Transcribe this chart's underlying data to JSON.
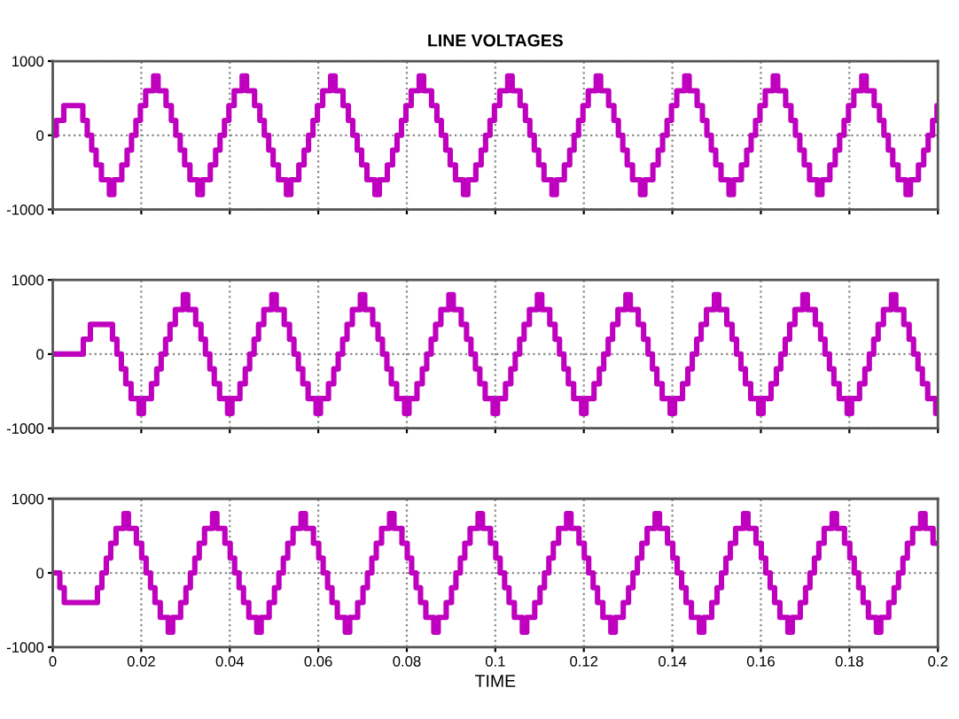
{
  "chart_data": [
    {
      "type": "step",
      "title": "LINE VOLTAGES",
      "xlim": [
        0,
        0.2
      ],
      "ylim": [
        -1000,
        1000
      ],
      "xticks": [
        0,
        0.02,
        0.04,
        0.06,
        0.08,
        0.1,
        0.12,
        0.14,
        0.16,
        0.18,
        0.2
      ],
      "yticks": [
        -1000,
        0,
        1000
      ],
      "tick_labels": "y",
      "grid": true,
      "series": [
        {
          "color": "#bf00bf",
          "x": [
            0,
            0.0008,
            0.0025,
            0.0068,
            0.0078,
            0.0088,
            0.0098,
            0.011,
            0.0128,
            0.0138,
            0.0156,
            0.0168,
            0.0178,
            0.0188,
            0.0198,
            0.021,
            0.0228,
            0.0238,
            0.0256,
            0.0268,
            0.0278,
            0.0288,
            0.0298,
            0.031,
            0.0328,
            0.0338,
            0.0356,
            0.0368,
            0.0378,
            0.0388,
            0.0398,
            0.041,
            0.0428,
            0.0438,
            0.0456,
            0.0468,
            0.0478,
            0.0488,
            0.0498,
            0.051,
            0.0528,
            0.0538,
            0.0556,
            0.0568,
            0.0578,
            0.0588,
            0.0598,
            0.061,
            0.0628,
            0.0638,
            0.0656,
            0.0668,
            0.0678,
            0.0688,
            0.0698,
            0.071,
            0.0728,
            0.0738,
            0.0756,
            0.0768,
            0.0778,
            0.0788,
            0.0798,
            0.081,
            0.0828,
            0.0838,
            0.0856,
            0.0868,
            0.0878,
            0.0888,
            0.0898,
            0.091,
            0.0928,
            0.0938,
            0.0956,
            0.0968,
            0.0978,
            0.0988,
            0.0998,
            0.101,
            0.1028,
            0.1038,
            0.1056,
            0.1068,
            0.1078,
            0.1088,
            0.1098,
            0.111,
            0.1128,
            0.1138,
            0.1156,
            0.1168,
            0.1178,
            0.1188,
            0.1198,
            0.121,
            0.1228,
            0.1238,
            0.1256,
            0.1268,
            0.1278,
            0.1288,
            0.1298,
            0.131,
            0.1328,
            0.1338,
            0.1356,
            0.1368,
            0.1378,
            0.1388,
            0.1398,
            0.141,
            0.1428,
            0.1438,
            0.1456,
            0.1468,
            0.1478,
            0.1488,
            0.1498,
            0.151,
            0.1528,
            0.1538,
            0.1556,
            0.1568,
            0.1578,
            0.1588,
            0.1598,
            0.161,
            0.1628,
            0.1638,
            0.1656,
            0.1668,
            0.1678,
            0.1688,
            0.1698,
            0.171,
            0.1728,
            0.1738,
            0.1756,
            0.1768,
            0.1778,
            0.1788,
            0.1798,
            0.181,
            0.1828,
            0.1838,
            0.1856,
            0.1868,
            0.1878,
            0.1888,
            0.1898,
            0.191,
            0.1928,
            0.1938,
            0.1956,
            0.1968,
            0.1978,
            0.1988,
            0.1998,
            0.2
          ],
          "values": [
            0,
            200,
            400,
            200,
            0,
            -200,
            -400,
            -600,
            -800,
            -600,
            -400,
            -200,
            0,
            200,
            400,
            600,
            800,
            600,
            400,
            200,
            0,
            -200,
            -400,
            -600,
            -800,
            -600,
            -400,
            -200,
            0,
            200,
            400,
            600,
            800,
            600,
            400,
            200,
            0,
            -200,
            -400,
            -600,
            -800,
            -600,
            -400,
            -200,
            0,
            200,
            400,
            600,
            800,
            600,
            400,
            200,
            0,
            -200,
            -400,
            -600,
            -800,
            -600,
            -400,
            -200,
            0,
            200,
            400,
            600,
            800,
            600,
            400,
            200,
            0,
            -200,
            -400,
            -600,
            -800,
            -600,
            -400,
            -200,
            0,
            200,
            400,
            600,
            800,
            600,
            400,
            200,
            0,
            -200,
            -400,
            -600,
            -800,
            -600,
            -400,
            -200,
            0,
            200,
            400,
            600,
            800,
            600,
            400,
            200,
            0,
            -200,
            -400,
            -600,
            -800,
            -600,
            -400,
            -200,
            0,
            200,
            400,
            600,
            800,
            600,
            400,
            200,
            0,
            -200,
            -400,
            -600,
            -800,
            -600,
            -400,
            -200,
            0,
            200,
            400,
            600,
            800,
            600,
            400,
            200,
            0,
            -200,
            -400,
            -600,
            -800,
            -600,
            -400,
            -200,
            0,
            200,
            400,
            600,
            800,
            600,
            400,
            200,
            0,
            -200,
            -400,
            -600,
            -800,
            -600,
            -400,
            -200,
            0,
            200,
            400,
            400
          ]
        }
      ]
    },
    {
      "type": "step",
      "xlim": [
        0,
        0.2
      ],
      "ylim": [
        -1000,
        1000
      ],
      "xticks": [
        0,
        0.02,
        0.04,
        0.06,
        0.08,
        0.1,
        0.12,
        0.14,
        0.16,
        0.18,
        0.2
      ],
      "yticks": [
        -1000,
        0,
        1000
      ],
      "tick_labels": "y",
      "grid": true,
      "series": [
        {
          "color": "#bf00bf",
          "x": [
            0,
            0.0069,
            0.0085,
            0.0135,
            0.0145,
            0.0155,
            0.0165,
            0.0177,
            0.0195,
            0.0205,
            0.0223,
            0.0235,
            0.0245,
            0.0255,
            0.0265,
            0.0277,
            0.0295,
            0.0305,
            0.0323,
            0.0335,
            0.0345,
            0.0355,
            0.0365,
            0.0377,
            0.0395,
            0.0405,
            0.0423,
            0.0435,
            0.0445,
            0.0455,
            0.0465,
            0.0477,
            0.0495,
            0.0505,
            0.0523,
            0.0535,
            0.0545,
            0.0555,
            0.0565,
            0.0577,
            0.0595,
            0.0605,
            0.0623,
            0.0635,
            0.0645,
            0.0655,
            0.0665,
            0.0677,
            0.0695,
            0.0705,
            0.0723,
            0.0735,
            0.0745,
            0.0755,
            0.0765,
            0.0777,
            0.0795,
            0.0805,
            0.0823,
            0.0835,
            0.0845,
            0.0855,
            0.0865,
            0.0877,
            0.0895,
            0.0905,
            0.0923,
            0.0935,
            0.0945,
            0.0955,
            0.0965,
            0.0977,
            0.0995,
            0.1005,
            0.1023,
            0.1035,
            0.1045,
            0.1055,
            0.1065,
            0.1077,
            0.1095,
            0.1105,
            0.1123,
            0.1135,
            0.1145,
            0.1155,
            0.1165,
            0.1177,
            0.1195,
            0.1205,
            0.1223,
            0.1235,
            0.1245,
            0.1255,
            0.1265,
            0.1277,
            0.1295,
            0.1305,
            0.1323,
            0.1335,
            0.1345,
            0.1355,
            0.1365,
            0.1377,
            0.1395,
            0.1405,
            0.1423,
            0.1435,
            0.1445,
            0.1455,
            0.1465,
            0.1477,
            0.1495,
            0.1505,
            0.1523,
            0.1535,
            0.1545,
            0.1555,
            0.1565,
            0.1577,
            0.1595,
            0.1605,
            0.1623,
            0.1635,
            0.1645,
            0.1655,
            0.1665,
            0.1677,
            0.1695,
            0.1705,
            0.1723,
            0.1735,
            0.1745,
            0.1755,
            0.1765,
            0.1777,
            0.1795,
            0.1805,
            0.1823,
            0.1835,
            0.1845,
            0.1855,
            0.1865,
            0.1877,
            0.1895,
            0.1905,
            0.1923,
            0.1935,
            0.1945,
            0.1955,
            0.1965,
            0.1977,
            0.1995,
            0.2
          ],
          "values": [
            0,
            200,
            400,
            200,
            0,
            -200,
            -400,
            -600,
            -800,
            -600,
            -400,
            -200,
            0,
            200,
            400,
            600,
            800,
            600,
            400,
            200,
            0,
            -200,
            -400,
            -600,
            -800,
            -600,
            -400,
            -200,
            0,
            200,
            400,
            600,
            800,
            600,
            400,
            200,
            0,
            -200,
            -400,
            -600,
            -800,
            -600,
            -400,
            -200,
            0,
            200,
            400,
            600,
            800,
            600,
            400,
            200,
            0,
            -200,
            -400,
            -600,
            -800,
            -600,
            -400,
            -200,
            0,
            200,
            400,
            600,
            800,
            600,
            400,
            200,
            0,
            -200,
            -400,
            -600,
            -800,
            -600,
            -400,
            -200,
            0,
            200,
            400,
            600,
            800,
            600,
            400,
            200,
            0,
            -200,
            -400,
            -600,
            -800,
            -600,
            -400,
            -200,
            0,
            200,
            400,
            600,
            800,
            600,
            400,
            200,
            0,
            -200,
            -400,
            -600,
            -800,
            -600,
            -400,
            -200,
            0,
            200,
            400,
            600,
            800,
            600,
            400,
            200,
            0,
            -200,
            -400,
            -600,
            -800,
            -600,
            -400,
            -200,
            0,
            200,
            400,
            600,
            800,
            600,
            400,
            200,
            0,
            -200,
            -400,
            -600,
            -800,
            -600,
            -400,
            -200,
            0,
            200,
            400,
            600,
            800,
            600,
            400,
            200,
            0,
            -200,
            -400,
            -600,
            -800,
            -800
          ]
        }
      ]
    },
    {
      "type": "step",
      "xlabel": "TIME",
      "xlim": [
        0,
        0.2
      ],
      "ylim": [
        -1000,
        1000
      ],
      "xticks": [
        0,
        0.02,
        0.04,
        0.06,
        0.08,
        0.1,
        0.12,
        0.14,
        0.16,
        0.18,
        0.2
      ],
      "yticks": [
        -1000,
        0,
        1000
      ],
      "grid": true,
      "series": [
        {
          "color": "#bf00bf",
          "x": [
            0,
            0.0016,
            0.0026,
            0.0089,
            0.0101,
            0.0111,
            0.0121,
            0.0131,
            0.0143,
            0.0161,
            0.0171,
            0.0189,
            0.0201,
            0.0211,
            0.0221,
            0.0231,
            0.0243,
            0.0261,
            0.0271,
            0.0289,
            0.0301,
            0.0311,
            0.0321,
            0.0331,
            0.0343,
            0.0361,
            0.0371,
            0.0389,
            0.0401,
            0.0411,
            0.0421,
            0.0431,
            0.0443,
            0.0461,
            0.0471,
            0.0489,
            0.0501,
            0.0511,
            0.0521,
            0.0531,
            0.0543,
            0.0561,
            0.0571,
            0.0589,
            0.0601,
            0.0611,
            0.0621,
            0.0631,
            0.0643,
            0.0661,
            0.0671,
            0.0689,
            0.0701,
            0.0711,
            0.0721,
            0.0731,
            0.0743,
            0.0761,
            0.0771,
            0.0789,
            0.0801,
            0.0811,
            0.0821,
            0.0831,
            0.0843,
            0.0861,
            0.0871,
            0.0889,
            0.0901,
            0.0911,
            0.0921,
            0.0931,
            0.0943,
            0.0961,
            0.0971,
            0.0989,
            0.1001,
            0.1011,
            0.1021,
            0.1031,
            0.1043,
            0.1061,
            0.1071,
            0.1089,
            0.1101,
            0.1111,
            0.1121,
            0.1131,
            0.1143,
            0.1161,
            0.1171,
            0.1189,
            0.1201,
            0.1211,
            0.1221,
            0.1231,
            0.1243,
            0.1261,
            0.1271,
            0.1289,
            0.1301,
            0.1311,
            0.1321,
            0.1331,
            0.1343,
            0.1361,
            0.1371,
            0.1389,
            0.1401,
            0.1411,
            0.1421,
            0.1431,
            0.1443,
            0.1461,
            0.1471,
            0.1489,
            0.1501,
            0.1511,
            0.1521,
            0.1531,
            0.1543,
            0.1561,
            0.1571,
            0.1589,
            0.1601,
            0.1611,
            0.1621,
            0.1631,
            0.1643,
            0.1661,
            0.1671,
            0.1689,
            0.1701,
            0.1711,
            0.1721,
            0.1731,
            0.1743,
            0.1761,
            0.1771,
            0.1789,
            0.1801,
            0.1811,
            0.1821,
            0.1831,
            0.1843,
            0.1861,
            0.1871,
            0.1889,
            0.1901,
            0.1911,
            0.1921,
            0.1931,
            0.1943,
            0.1961,
            0.1971,
            0.1989,
            0.2
          ],
          "values": [
            0,
            -200,
            -400,
            -400,
            -200,
            0,
            200,
            400,
            600,
            800,
            600,
            400,
            200,
            0,
            -200,
            -400,
            -600,
            -800,
            -600,
            -400,
            -200,
            0,
            200,
            400,
            600,
            800,
            600,
            400,
            200,
            0,
            -200,
            -400,
            -600,
            -800,
            -600,
            -400,
            -200,
            0,
            200,
            400,
            600,
            800,
            600,
            400,
            200,
            0,
            -200,
            -400,
            -600,
            -800,
            -600,
            -400,
            -200,
            0,
            200,
            400,
            600,
            800,
            600,
            400,
            200,
            0,
            -200,
            -400,
            -600,
            -800,
            -600,
            -400,
            -200,
            0,
            200,
            400,
            600,
            800,
            600,
            400,
            200,
            0,
            -200,
            -400,
            -600,
            -800,
            -600,
            -400,
            -200,
            0,
            200,
            400,
            600,
            800,
            600,
            400,
            200,
            0,
            -200,
            -400,
            -600,
            -800,
            -600,
            -400,
            -200,
            0,
            200,
            400,
            600,
            800,
            600,
            400,
            200,
            0,
            -200,
            -400,
            -600,
            -800,
            -600,
            -400,
            -200,
            0,
            200,
            400,
            600,
            800,
            600,
            400,
            200,
            0,
            -200,
            -400,
            -600,
            -800,
            -600,
            -400,
            -200,
            0,
            200,
            400,
            600,
            800,
            600,
            400,
            200,
            0,
            -200,
            -400,
            -600,
            -800,
            -600,
            -400,
            -200,
            0,
            200,
            400,
            600,
            800,
            600,
            400,
            400
          ]
        }
      ]
    }
  ]
}
